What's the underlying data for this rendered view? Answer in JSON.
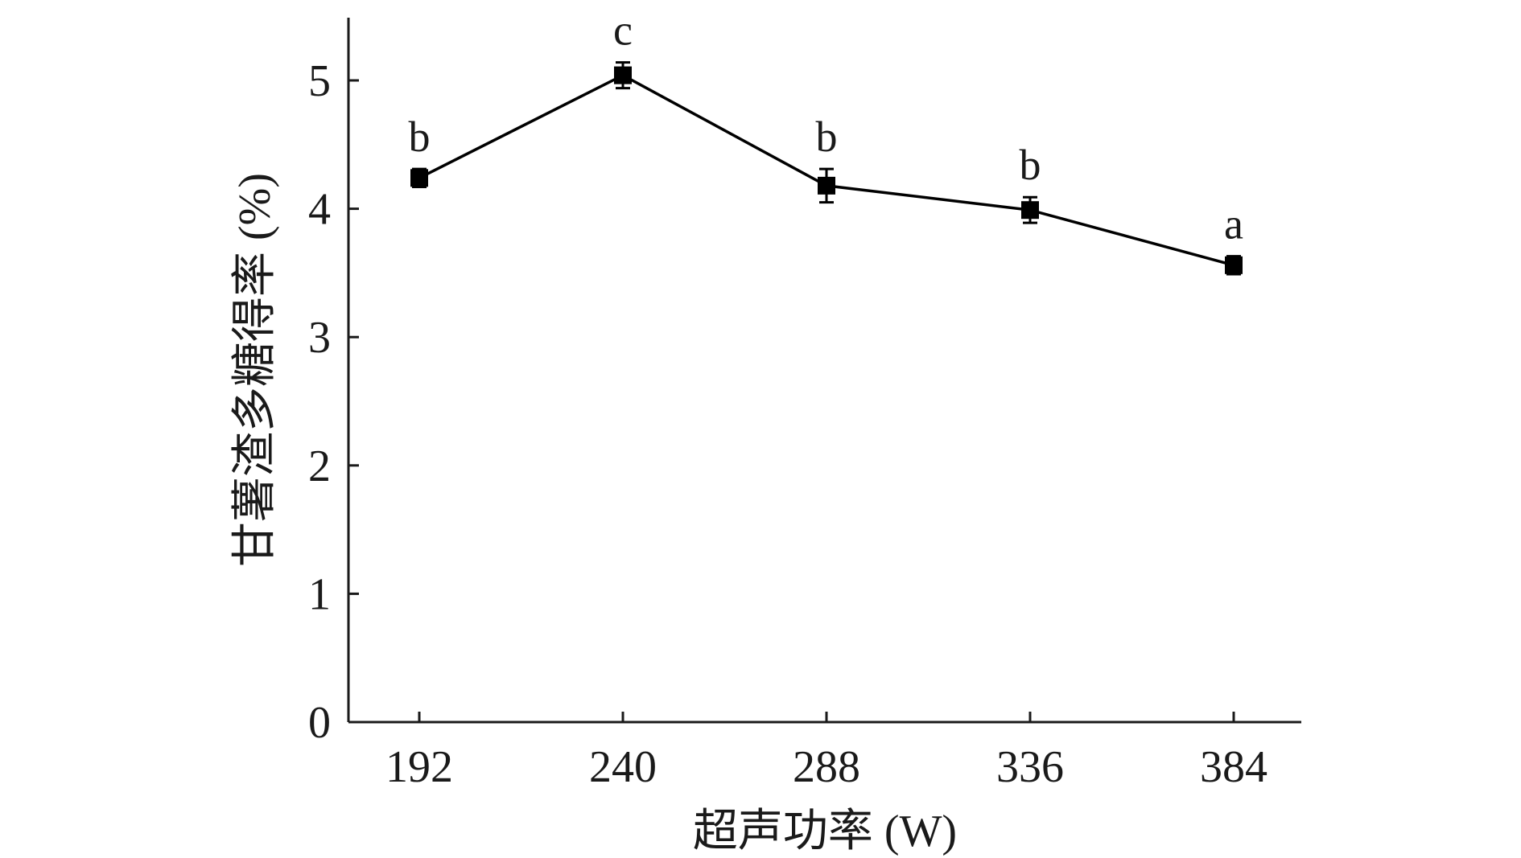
{
  "chart_data": {
    "type": "line",
    "title": "",
    "xlabel": "超声功率 (W)",
    "ylabel": "甘薯渣多糖得率 (%)",
    "categories": [
      "192",
      "240",
      "288",
      "336",
      "384"
    ],
    "x": [
      192,
      240,
      288,
      336,
      384
    ],
    "series": [
      {
        "values": [
          4.24,
          5.04,
          4.18,
          3.99,
          3.56
        ],
        "errors": [
          0.07,
          0.1,
          0.13,
          0.1,
          0.07
        ],
        "labels": [
          "b",
          "c",
          "b",
          "b",
          "a"
        ]
      }
    ],
    "ylim": [
      0,
      5.5
    ],
    "yticks": [
      0,
      1,
      2,
      3,
      4,
      5
    ],
    "grid": false,
    "marker": "square",
    "colors": {
      "line": "#000000",
      "axis": "#1a1a1a"
    }
  }
}
